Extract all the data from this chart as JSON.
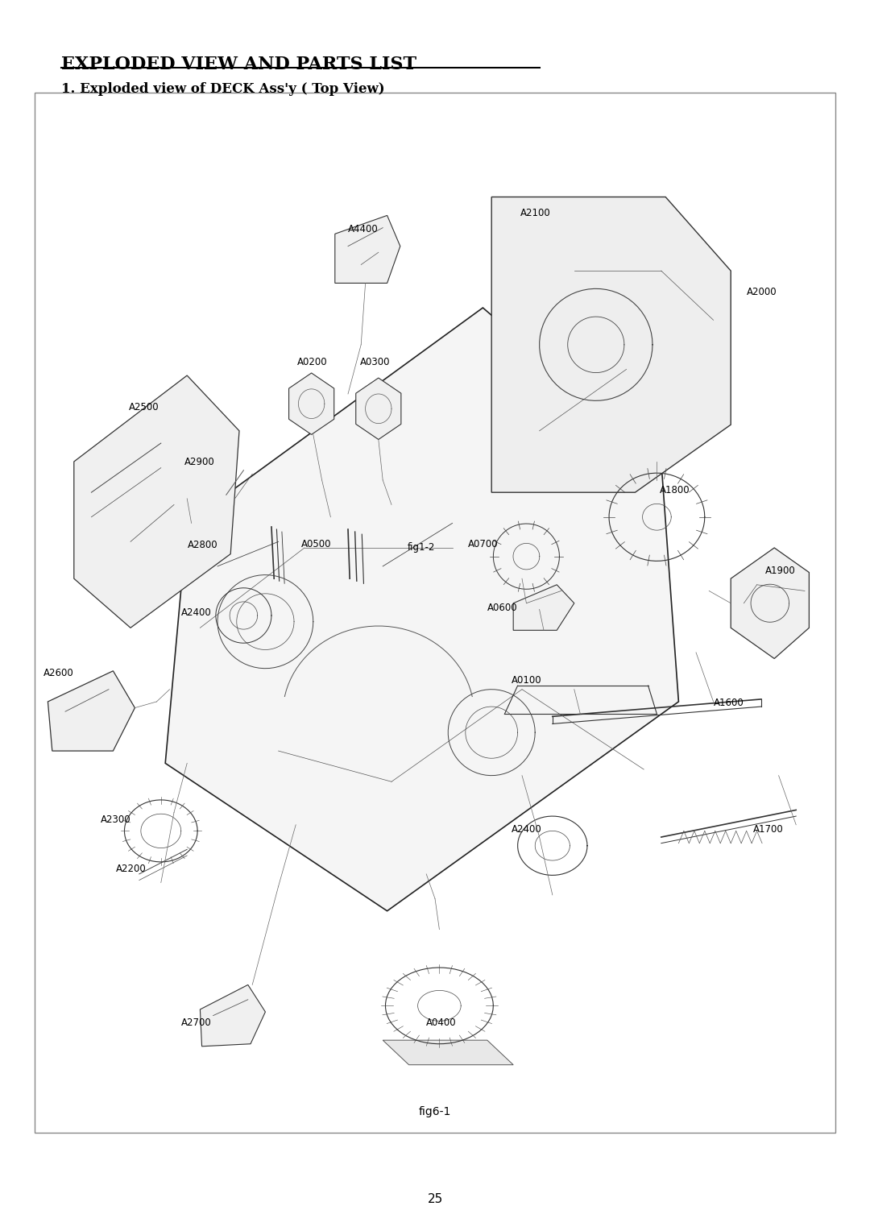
{
  "title": "EXPLODED VIEW AND PARTS LIST",
  "subtitle": "1. Exploded view of DECK Ass'y ( Top View)",
  "fig_label": "fig6-1",
  "fig_sublabel": "fig1-2",
  "page_number": "25",
  "bg_color": "#ffffff",
  "border_color": "#888888",
  "text_color": "#000000",
  "title_fontsize": 16,
  "subtitle_fontsize": 12,
  "label_fontsize": 9
}
